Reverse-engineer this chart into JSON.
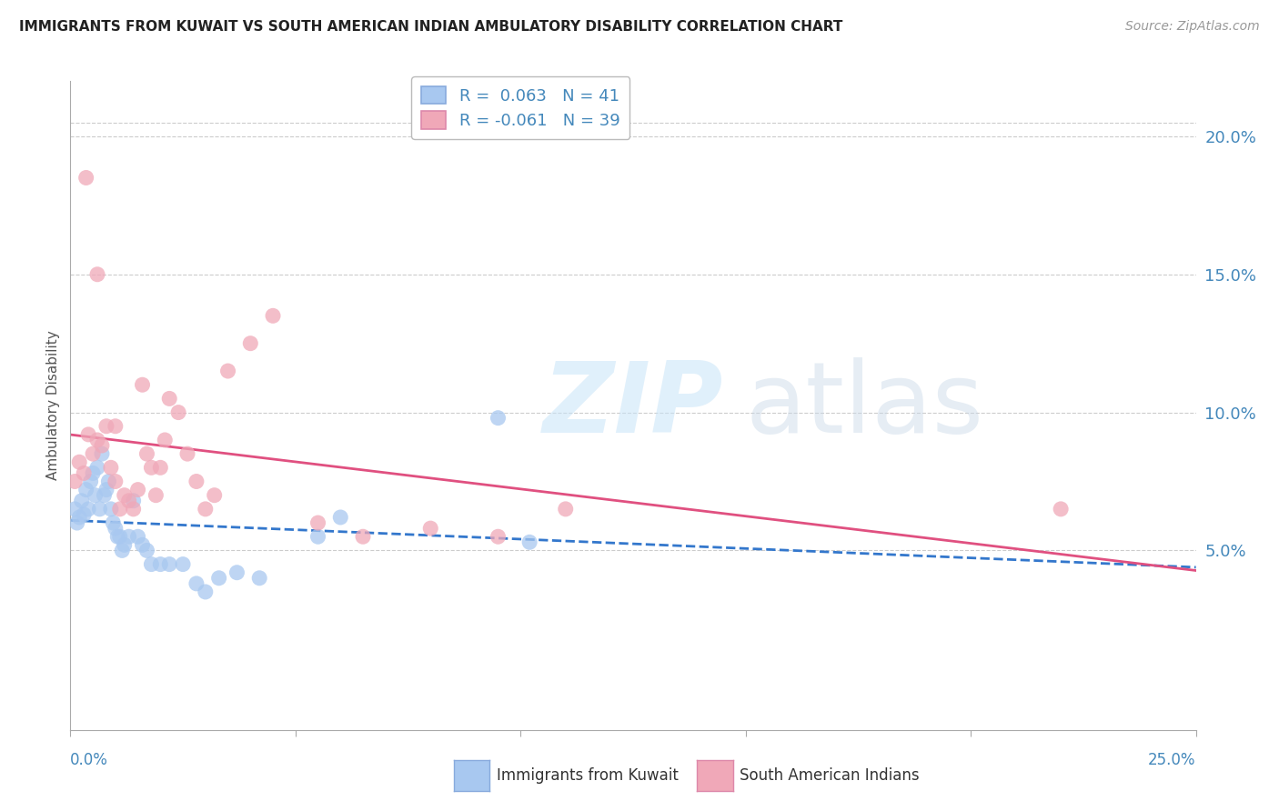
{
  "title": "IMMIGRANTS FROM KUWAIT VS SOUTH AMERICAN INDIAN AMBULATORY DISABILITY CORRELATION CHART",
  "source": "Source: ZipAtlas.com",
  "ylabel": "Ambulatory Disability",
  "right_yticks": [
    5.0,
    10.0,
    15.0,
    20.0
  ],
  "xlim": [
    0.0,
    25.0
  ],
  "ylim": [
    -1.5,
    22.0
  ],
  "legend_entries": [
    {
      "label": "R =  0.063   N = 41",
      "color": "#a8c8f0"
    },
    {
      "label": "R = -0.061   N = 39",
      "color": "#f0a8b8"
    }
  ],
  "kuwait_x": [
    0.1,
    0.15,
    0.2,
    0.25,
    0.3,
    0.35,
    0.4,
    0.45,
    0.5,
    0.55,
    0.6,
    0.65,
    0.7,
    0.75,
    0.8,
    0.85,
    0.9,
    0.95,
    1.0,
    1.05,
    1.1,
    1.15,
    1.2,
    1.3,
    1.4,
    1.5,
    1.6,
    1.7,
    1.8,
    2.0,
    2.2,
    2.5,
    2.8,
    3.0,
    3.3,
    3.7,
    4.2,
    5.5,
    6.0,
    9.5,
    10.2
  ],
  "kuwait_y": [
    6.5,
    6.0,
    6.2,
    6.8,
    6.3,
    7.2,
    6.5,
    7.5,
    7.8,
    7.0,
    8.0,
    6.5,
    8.5,
    7.0,
    7.2,
    7.5,
    6.5,
    6.0,
    5.8,
    5.5,
    5.5,
    5.0,
    5.2,
    5.5,
    6.8,
    5.5,
    5.2,
    5.0,
    4.5,
    4.5,
    4.5,
    4.5,
    3.8,
    3.5,
    4.0,
    4.2,
    4.0,
    5.5,
    6.2,
    9.8,
    5.3
  ],
  "sa_indian_x": [
    0.1,
    0.2,
    0.3,
    0.4,
    0.5,
    0.6,
    0.7,
    0.8,
    0.9,
    1.0,
    1.1,
    1.2,
    1.3,
    1.4,
    1.5,
    1.6,
    1.7,
    1.8,
    1.9,
    2.0,
    2.1,
    2.2,
    2.4,
    2.6,
    2.8,
    3.0,
    3.2,
    3.5,
    4.0,
    4.5,
    5.5,
    6.5,
    8.0,
    9.5,
    11.0,
    22.0,
    0.35,
    0.6,
    1.0
  ],
  "sa_indian_y": [
    7.5,
    8.2,
    7.8,
    9.2,
    8.5,
    9.0,
    8.8,
    9.5,
    8.0,
    7.5,
    6.5,
    7.0,
    6.8,
    6.5,
    7.2,
    11.0,
    8.5,
    8.0,
    7.0,
    8.0,
    9.0,
    10.5,
    10.0,
    8.5,
    7.5,
    6.5,
    7.0,
    11.5,
    12.5,
    13.5,
    6.0,
    5.5,
    5.8,
    5.5,
    6.5,
    6.5,
    18.5,
    15.0,
    9.5
  ],
  "kuwait_color": "#a8c8f0",
  "sa_indian_color": "#f0a8b8",
  "kuwait_trend_color": "#3377cc",
  "sa_trend_color": "#e05080",
  "background_color": "#ffffff",
  "grid_color": "#cccccc",
  "title_color": "#222222",
  "tick_label_color": "#4488bb",
  "ylabel_color": "#555555"
}
